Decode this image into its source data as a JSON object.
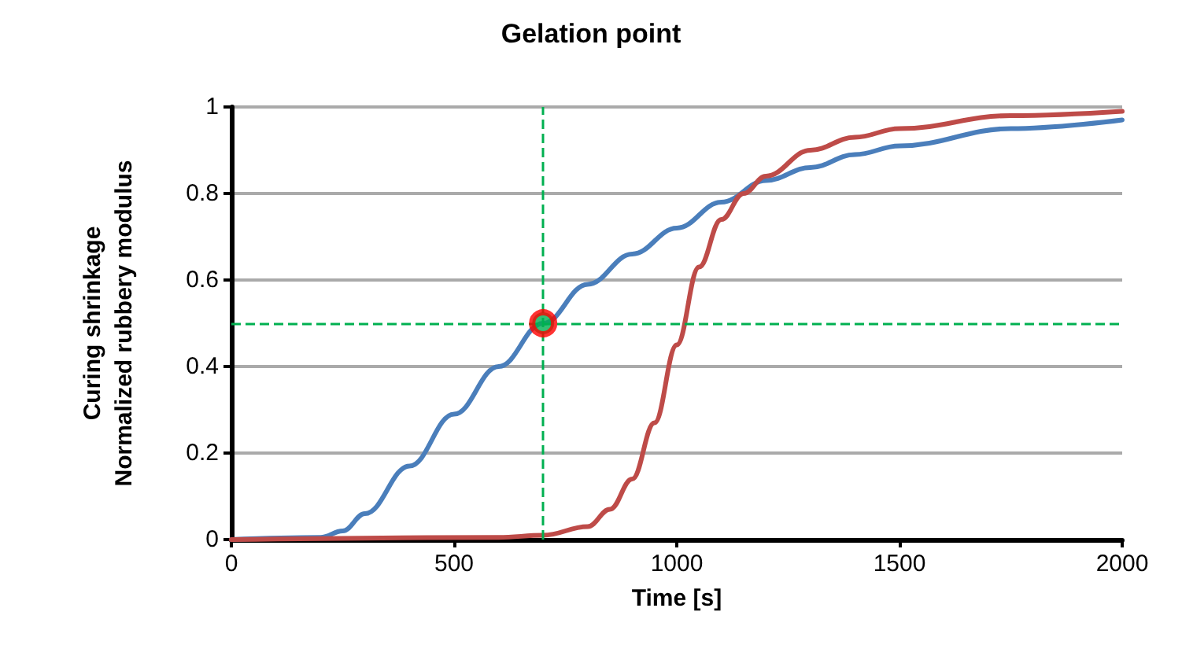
{
  "chart_data": {
    "type": "line",
    "title": "Gelation point",
    "xlabel": "Time [s]",
    "ylabel": "Curing shrinkage\nNormalized rubbery modulus",
    "xlim": [
      0,
      2000
    ],
    "xticks": [
      0,
      500,
      1000,
      1500,
      2000
    ],
    "ylim": [
      0,
      1
    ],
    "yticks": [
      0,
      0.2,
      0.4,
      0.6,
      0.8,
      1
    ],
    "grid": "y",
    "marker": "none",
    "line_style": "solid",
    "series": [
      {
        "color": "#4a7ebb",
        "x": [
          0,
          200,
          250,
          300,
          400,
          500,
          600,
          700,
          800,
          900,
          1000,
          1100,
          1200,
          1300,
          1400,
          1500,
          1750,
          2000
        ],
        "values": [
          0,
          0.005,
          0.02,
          0.06,
          0.17,
          0.29,
          0.4,
          0.5,
          0.59,
          0.66,
          0.72,
          0.78,
          0.83,
          0.86,
          0.89,
          0.91,
          0.95,
          0.97
        ]
      },
      {
        "color": "#be4b48",
        "x": [
          0,
          600,
          700,
          800,
          850,
          900,
          950,
          1000,
          1050,
          1100,
          1150,
          1200,
          1300,
          1400,
          1500,
          1750,
          2000
        ],
        "values": [
          0,
          0.005,
          0.01,
          0.03,
          0.07,
          0.14,
          0.27,
          0.45,
          0.63,
          0.74,
          0.8,
          0.84,
          0.9,
          0.93,
          0.95,
          0.98,
          0.99
        ]
      },
      {
        "type": "scatter",
        "color": "#ff0000",
        "marker": "circle",
        "x": [
          700
        ],
        "values": [
          0.5
        ]
      }
    ],
    "ref_lines": [
      {
        "axis": "y",
        "value": 0.5,
        "color": "#00b050",
        "line_style": "dashed"
      },
      {
        "axis": "x",
        "value": 700,
        "color": "#00b050",
        "line_style": "dashed"
      }
    ]
  }
}
